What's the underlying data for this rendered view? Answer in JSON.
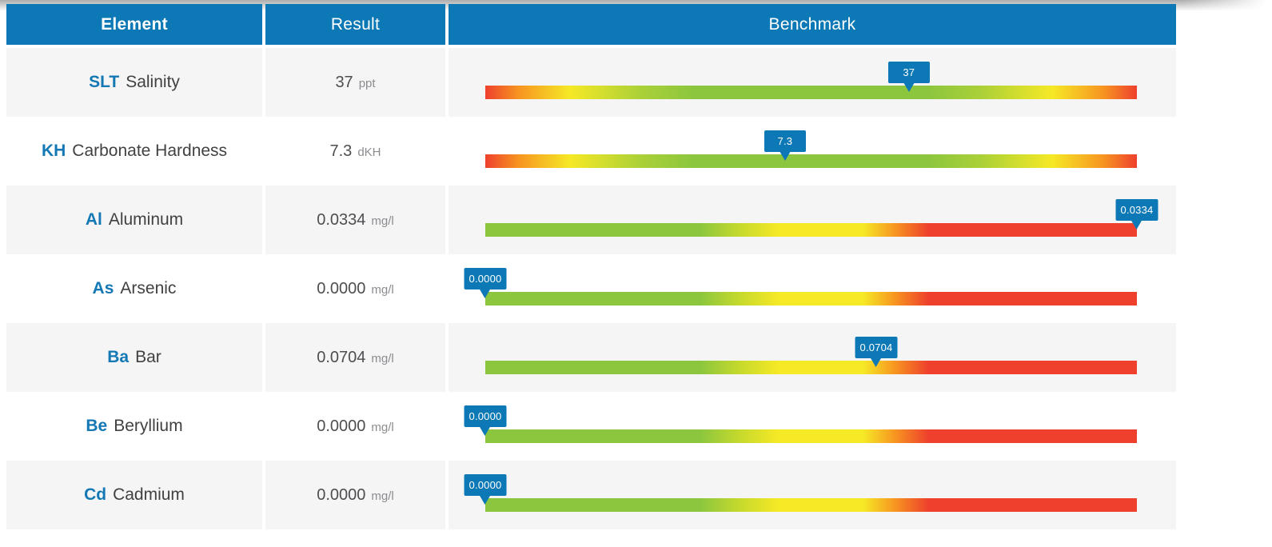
{
  "table": {
    "columns": [
      {
        "label": "Element"
      },
      {
        "label": "Result"
      },
      {
        "label": "Benchmark"
      }
    ],
    "rows": [
      {
        "code": "SLT",
        "name": "Salinity",
        "value": "37",
        "unit": "ppt",
        "marker_label": "37",
        "position_pct": 65,
        "scale": "mid-optimal"
      },
      {
        "code": "KH",
        "name": "Carbonate Hardness",
        "value": "7.3",
        "unit": "dKH",
        "marker_label": "7.3",
        "position_pct": 46,
        "scale": "mid-optimal"
      },
      {
        "code": "Al",
        "name": "Aluminum",
        "value": "0.0334",
        "unit": "mg/l",
        "marker_label": "0.0334",
        "position_pct": 100,
        "scale": "low-optimal"
      },
      {
        "code": "As",
        "name": "Arsenic",
        "value": "0.0000",
        "unit": "mg/l",
        "marker_label": "0.0000",
        "position_pct": 0,
        "scale": "low-optimal"
      },
      {
        "code": "Ba",
        "name": "Bar",
        "value": "0.0704",
        "unit": "mg/l",
        "marker_label": "0.0704",
        "position_pct": 60,
        "scale": "low-optimal"
      },
      {
        "code": "Be",
        "name": "Beryllium",
        "value": "0.0000",
        "unit": "mg/l",
        "marker_label": "0.0000",
        "position_pct": 0,
        "scale": "low-optimal"
      },
      {
        "code": "Cd",
        "name": "Cadmium",
        "value": "0.0000",
        "unit": "mg/l",
        "marker_label": "0.0000",
        "position_pct": 0,
        "scale": "low-optimal"
      }
    ]
  },
  "colors": {
    "header_blue": "#0c79b6",
    "badge_blue": "#0c79b6",
    "code_blue": "#1478b5",
    "row_alt_bg": "#f5f5f6",
    "text_dark": "#414042",
    "unit_gray": "#8a8c8f",
    "bar_green": "#8cc63e",
    "bar_yellow": "#f6e926",
    "bar_orange": "#f79321",
    "bar_red": "#ee402d"
  }
}
